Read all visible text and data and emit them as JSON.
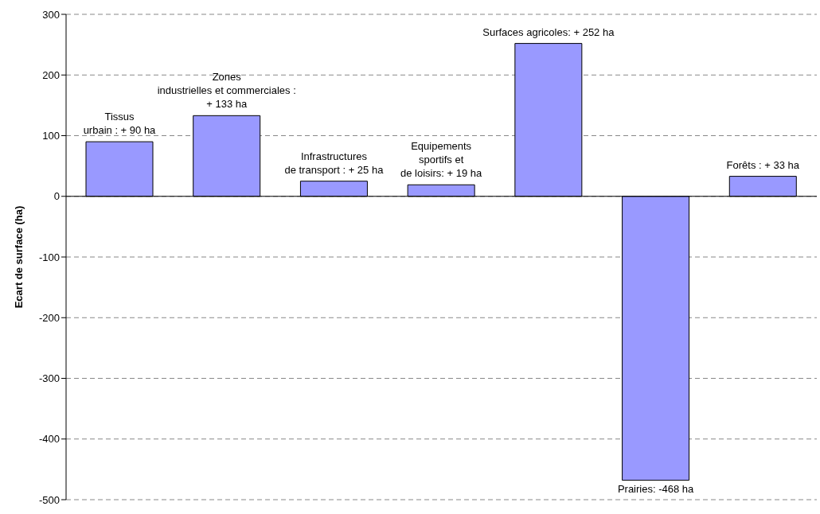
{
  "chart_data": {
    "type": "bar",
    "ylabel": "Ecart de surface (ha)",
    "categories": [
      null,
      null,
      null,
      null,
      null,
      null,
      null
    ],
    "values": [
      90,
      133,
      25,
      19,
      252,
      -468,
      33
    ],
    "value_labels": [
      "Tissus\nurbain : + 90 ha",
      "Zones\nindustrielles et commerciales :\n+ 133 ha",
      "Infrastructures\nde transport : + 25 ha",
      "Equipements\nsportifs et\nde loisirs: + 19 ha",
      "Surfaces agricoles: + 252 ha",
      "Prairies: -468 ha",
      "Forêts : + 33 ha"
    ],
    "color": "#9999ff",
    "ylim": [
      -500,
      300
    ],
    "yticks": [
      -500,
      -400,
      -300,
      -200,
      -100,
      0,
      100,
      200,
      300
    ],
    "grid": "y",
    "tick_labels": "y",
    "legend": false
  }
}
